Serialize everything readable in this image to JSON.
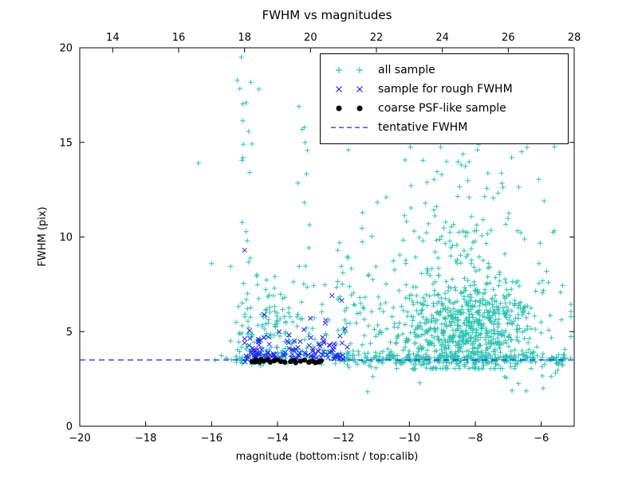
{
  "chart_data": {
    "type": "scatter",
    "title": "FWHM vs magnitudes",
    "xlabel": "magnitude (bottom:isnt / top:calib)",
    "ylabel": "FWHM (pix)",
    "xlim_bottom": [
      -20,
      -5
    ],
    "xlim_top": [
      13,
      28
    ],
    "ylim": [
      0,
      20
    ],
    "x_ticks_bottom": [
      -20,
      -18,
      -16,
      -14,
      -12,
      -10,
      -8,
      -6
    ],
    "x_ticks_top": [
      14,
      16,
      18,
      20,
      22,
      24,
      26,
      28
    ],
    "y_ticks": [
      0,
      5,
      10,
      15,
      20
    ],
    "grid": false,
    "legend_position": "upper right",
    "tentative_fwhm": 3.5,
    "legend": [
      {
        "label": "all sample",
        "marker": "plus",
        "color": "#2fc2b2"
      },
      {
        "label": "sample for rough FWHM",
        "marker": "x",
        "color": "#2222ee"
      },
      {
        "label": "coarse PSF-like sample",
        "marker": "dot",
        "color": "#000000"
      },
      {
        "label": "tentative FWHM",
        "marker": "dashed",
        "color": "#2222ee"
      }
    ],
    "series": [
      {
        "id": "all-sample",
        "name": "all sample",
        "marker": "plus",
        "color": "#2fc2b2",
        "clusters": [
          {
            "n": 620,
            "x": {
              "dist": "gauss",
              "mu": -8.2,
              "sigma": 1.05
            },
            "y": {
              "dist": "gauss",
              "mu": 4.9,
              "sigma": 1.15
            },
            "clampX": [
              -11.8,
              -5.1
            ],
            "clampY": [
              3.05,
              9.5
            ]
          },
          {
            "n": 230,
            "x": {
              "dist": "gauss",
              "mu": -8.5,
              "sigma": 1.4
            },
            "y": {
              "dist": "halfgauss",
              "base": 5.5,
              "scale": 3.0
            },
            "clampX": [
              -12.2,
              -5.1
            ],
            "clampY": [
              3.2,
              15.3
            ]
          },
          {
            "n": 300,
            "x": {
              "dist": "uniform",
              "min": -12.3,
              "max": -5.1
            },
            "y": {
              "dist": "gauss",
              "mu": 3.55,
              "sigma": 0.17
            }
          },
          {
            "n": 120,
            "x": {
              "dist": "gauss",
              "mu": -14.3,
              "sigma": 0.55
            },
            "y": {
              "dist": "halfgauss",
              "base": 3.45,
              "scale": 2.1
            },
            "clampX": [
              -15.7,
              -13.1
            ],
            "clampY": [
              3.2,
              11.5
            ]
          },
          {
            "n": 60,
            "x": {
              "dist": "uniform",
              "min": -15.3,
              "max": -12.3
            },
            "y": {
              "dist": "gauss",
              "mu": 3.6,
              "sigma": 0.22
            }
          },
          {
            "n": 24,
            "x": {
              "dist": "gauss",
              "mu": -14.95,
              "sigma": 0.12
            },
            "y": {
              "dist": "uniform",
              "min": 4.0,
              "max": 19.3
            }
          },
          {
            "n": 18,
            "x": {
              "dist": "gauss",
              "mu": -13.15,
              "sigma": 0.1
            },
            "y": {
              "dist": "uniform",
              "min": 4.0,
              "max": 16.5
            }
          },
          {
            "n": 12,
            "x": {
              "dist": "gauss",
              "mu": -12.05,
              "sigma": 0.08
            },
            "y": {
              "dist": "uniform",
              "min": 4.0,
              "max": 10.6
            }
          },
          {
            "n": 70,
            "x": {
              "dist": "uniform",
              "min": -13.2,
              "max": -10.2
            },
            "y": {
              "dist": "halfgauss",
              "base": 3.7,
              "scale": 2.6
            },
            "clampY": [
              3.3,
              14.0
            ]
          },
          {
            "n": 14,
            "x": {
              "dist": "uniform",
              "min": -11.6,
              "max": -5.4
            },
            "y": {
              "dist": "uniform",
              "min": 1.8,
              "max": 3.1
            }
          },
          {
            "n": 40,
            "x": {
              "dist": "gauss",
              "mu": -8.3,
              "sigma": 1.2
            },
            "y": {
              "dist": "uniform",
              "min": 9.5,
              "max": 14.8
            },
            "clampX": [
              -11.0,
              -5.6
            ]
          }
        ],
        "points": [
          [
            -16.4,
            13.9
          ],
          [
            -16.0,
            8.6
          ],
          [
            -15.1,
            19.5
          ],
          [
            -14.95,
            17.1
          ],
          [
            -13.35,
            16.9
          ],
          [
            -12.55,
            16.0
          ],
          [
            -11.85,
            14.6
          ],
          [
            -15.55,
            3.6
          ],
          [
            -15.9,
            3.5
          ],
          [
            -9.3,
            18.2
          ],
          [
            -8.6,
            16.5
          ],
          [
            -8.2,
            15.8
          ],
          [
            -7.9,
            14.9
          ],
          [
            -6.9,
            14.2
          ],
          [
            -10.3,
            15.9
          ]
        ]
      },
      {
        "id": "rough-fwhm-sample",
        "name": "sample for rough FWHM",
        "marker": "x",
        "color": "#2222ee",
        "clusters": [
          {
            "n": 90,
            "x": {
              "dist": "uniform",
              "min": -15.05,
              "max": -11.85
            },
            "y": {
              "dist": "halfgauss",
              "base": 3.55,
              "scale": 0.55
            },
            "clampY": [
              3.3,
              5.6
            ]
          },
          {
            "n": 25,
            "x": {
              "dist": "gauss",
              "mu": -13.8,
              "sigma": 0.8
            },
            "y": {
              "dist": "gauss",
              "mu": 4.3,
              "sigma": 0.5
            },
            "clampX": [
              -15.0,
              -11.9
            ],
            "clampY": [
              3.4,
              5.8
            ]
          }
        ],
        "points": [
          [
            -15.0,
            9.3
          ],
          [
            -12.35,
            6.9
          ],
          [
            -12.05,
            6.65
          ],
          [
            -14.4,
            5.9
          ],
          [
            -13.0,
            5.7
          ],
          [
            -12.55,
            5.45
          ],
          [
            -11.95,
            5.15
          ],
          [
            -14.85,
            5.05
          ]
        ]
      },
      {
        "id": "coarse-psf-sample",
        "name": "coarse PSF-like sample",
        "marker": "dot",
        "color": "#000000",
        "clusters": [],
        "points": [
          [
            -14.78,
            3.42
          ],
          [
            -14.68,
            3.4
          ],
          [
            -14.65,
            3.5
          ],
          [
            -14.55,
            3.38
          ],
          [
            -14.5,
            3.52
          ],
          [
            -14.42,
            3.45
          ],
          [
            -14.3,
            3.5
          ],
          [
            -14.22,
            3.38
          ],
          [
            -14.1,
            3.46
          ],
          [
            -14.0,
            3.52
          ],
          [
            -13.9,
            3.42
          ],
          [
            -13.78,
            3.38
          ],
          [
            -13.6,
            3.42
          ],
          [
            -13.5,
            3.48
          ],
          [
            -13.45,
            3.36
          ],
          [
            -13.3,
            3.44
          ],
          [
            -13.18,
            3.5
          ],
          [
            -13.05,
            3.38
          ],
          [
            -12.95,
            3.44
          ],
          [
            -12.85,
            3.36
          ],
          [
            -12.75,
            3.4
          ],
          [
            -12.68,
            3.44
          ]
        ]
      }
    ]
  },
  "colors": {
    "axis": "#000000",
    "background": "#ffffff",
    "tentative_line": "#2222ee"
  },
  "render_seed": 12345
}
